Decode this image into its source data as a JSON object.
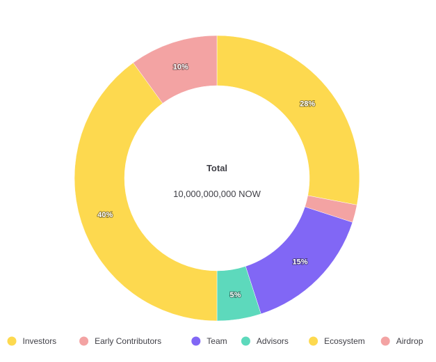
{
  "chart_data": {
    "type": "pie",
    "donut": true,
    "center_title": "Total",
    "center_value": "10,000,000,000 NOW",
    "legend_position": "bottom",
    "slices": [
      {
        "name": "Investors",
        "value": 28,
        "label": "28%",
        "color": "#FDD94F"
      },
      {
        "name": "Early Contributors",
        "value": 2,
        "label": "",
        "color": "#F3A3A3"
      },
      {
        "name": "Team",
        "value": 15,
        "label": "15%",
        "color": "#8167F5"
      },
      {
        "name": "Advisors",
        "value": 5,
        "label": "5%",
        "color": "#5DD9BC"
      },
      {
        "name": "Ecosystem",
        "value": 40,
        "label": "40%",
        "color": "#FDD94F"
      },
      {
        "name": "Airdrop",
        "value": 10,
        "label": "10%",
        "color": "#F3A3A3"
      }
    ]
  }
}
